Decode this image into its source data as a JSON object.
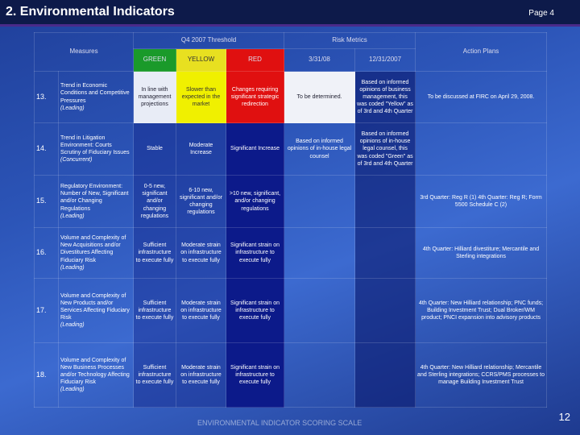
{
  "header": {
    "title": "2. Environmental Indicators",
    "page": "Page 4"
  },
  "table": {
    "group_headers": {
      "threshold": "Q4 2007 Threshold",
      "metrics": "Risk Metrics"
    },
    "columns": {
      "measures": "Measures",
      "green": "GREEN",
      "yellow": "YELLOW",
      "red": "RED",
      "current": "3/31/08",
      "prior": "12/31/2007",
      "action": "Action Plans"
    },
    "rows": [
      {
        "number": "13.",
        "measure": "Trend in Economic Conditions and Competitive Pressures",
        "indicator": "(Leading)",
        "green": "In line with management projections",
        "yellow": "Slower than expected in the market",
        "red": "Changes requiring significant strategic redirection",
        "current": "To be determined.",
        "prior": "Based on informed opinions of business management, this was coded \"Yellow\" as of 3rd and 4th Quarter",
        "action": "To be discussed at FIRC on April 29, 2008."
      },
      {
        "number": "14.",
        "measure": "Trend in Litigation Environment: Courts Scrutiny of Fiduciary Issues",
        "indicator": "(Concurrent)",
        "green": "Stable",
        "yellow": "Moderate Increase",
        "red": "Significant Increase",
        "current": "Based on informed opinions of in-house legal counsel",
        "prior": "Based on informed opinions of in-house legal counsel, this was coded \"Green\" as of 3rd and 4th Quarter"
      },
      {
        "number": "15.",
        "measure": "Regulatory Environment: Number of New, Significant and/or Changing Regulations",
        "indicator": "(Leading)",
        "green": "0-5 new, significant and/or changing regulations",
        "yellow": "6-10 new, significant and/or changing regulations",
        "red": ">10 new, significant, and/or changing regulations",
        "action": "3rd Quarter: Reg R (1) 4th Quarter: Reg R; Form 5500 Schedule C (2)"
      },
      {
        "number": "16.",
        "measure": "Volume and Complexity of New Acquisitions and/or Divestitures Affecting Fiduciary Risk",
        "indicator": "(Leading)",
        "green": "Sufficient infrastructure to execute fully",
        "yellow": "Moderate strain on infrastructure to execute fully",
        "red": "Significant strain on infrastructure to execute fully",
        "action": "4th Quarter: Hilliard divestiture; Mercantile and Sterling integrations"
      },
      {
        "number": "17.",
        "measure": "Volume and Complexity of New Products and/or Services Affecting Fiduciary Risk",
        "indicator": "(Leading)",
        "green": "Sufficient infrastructure to execute fully",
        "yellow": "Moderate strain on infrastructure to execute fully",
        "red": "Significant strain on infrastructure to execute fully",
        "action": "4th Quarter: New Hilliard relationship; PNC funds; Building Investment Trust; Dual Broker/WM product; PNCI expansion into advisory products"
      },
      {
        "number": "18.",
        "measure": "Volume and Complexity of New Business Processes and/or Technology Affecting Fiduciary Risk",
        "indicator": "(Leading)",
        "green": "Sufficient infrastructure to execute fully",
        "yellow": "Moderate strain on infrastructure to execute fully",
        "red": "Significant strain on infrastructure to execute fully",
        "action": "4th Quarter: New Hilliard relationship; Mercantile and Sterling integrations; CCRS/PMS processes to manage Building Investment Trust"
      }
    ]
  },
  "footer": {
    "caption": "ENVIRONMENTAL INDICATOR SCORING SCALE",
    "slide_number": "12"
  }
}
